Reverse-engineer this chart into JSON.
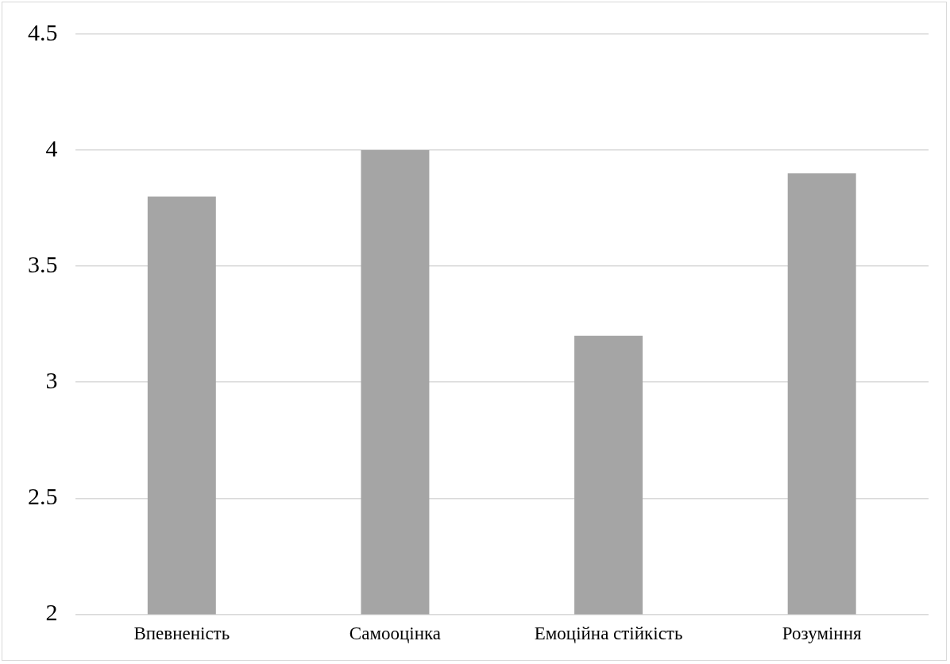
{
  "chart_data": {
    "type": "bar",
    "categories": [
      "Впевненість",
      "Самооцінка",
      "Емоційна стійкість",
      "Розуміння"
    ],
    "values": [
      3.8,
      4.0,
      3.2,
      3.9
    ],
    "color": "#a5a5a5",
    "ylim": [
      2,
      4.5
    ],
    "yticks": [
      2,
      2.5,
      3,
      3.5,
      4,
      4.5
    ],
    "grid": "y"
  }
}
